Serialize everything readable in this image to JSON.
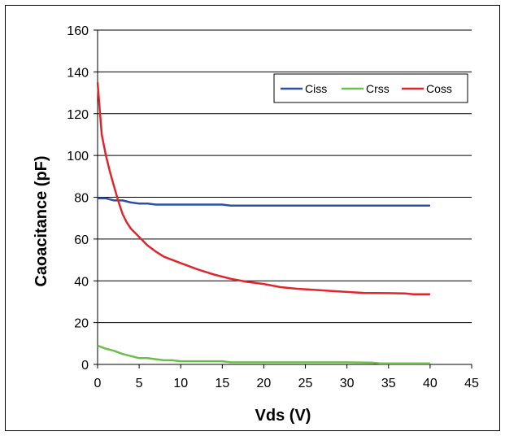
{
  "chart_data": {
    "type": "line",
    "title": "",
    "xlabel": "Vds (V)",
    "ylabel": "Caoacitance (pF)",
    "xlim": [
      0,
      45
    ],
    "ylim": [
      0,
      160
    ],
    "xticks": [
      0,
      5,
      10,
      15,
      20,
      25,
      30,
      35,
      40,
      45
    ],
    "yticks": [
      0,
      20,
      40,
      60,
      80,
      100,
      120,
      140,
      160
    ],
    "grid": "horizontal",
    "legend_position": "top-right",
    "series": [
      {
        "name": "Ciss",
        "color": "#2E4FA3",
        "points": [
          [
            0,
            79.5
          ],
          [
            1,
            79.5
          ],
          [
            2,
            78.5
          ],
          [
            3,
            78.5
          ],
          [
            4,
            77.5
          ],
          [
            5,
            77
          ],
          [
            6,
            77
          ],
          [
            7,
            76.5
          ],
          [
            10,
            76.5
          ],
          [
            15,
            76.5
          ],
          [
            16,
            76
          ],
          [
            20,
            76
          ],
          [
            25,
            76
          ],
          [
            30,
            76
          ],
          [
            35,
            76
          ],
          [
            40,
            76
          ]
        ]
      },
      {
        "name": "Crss",
        "color": "#6CC04A",
        "points": [
          [
            0,
            9
          ],
          [
            1,
            7.5
          ],
          [
            2,
            6.5
          ],
          [
            3,
            5
          ],
          [
            4,
            4
          ],
          [
            5,
            3
          ],
          [
            6,
            3
          ],
          [
            7,
            2.5
          ],
          [
            8,
            2
          ],
          [
            9,
            2
          ],
          [
            10,
            1.5
          ],
          [
            15,
            1.5
          ],
          [
            16,
            1
          ],
          [
            20,
            1
          ],
          [
            25,
            1
          ],
          [
            30,
            1
          ],
          [
            33,
            0.8
          ],
          [
            34,
            0.5
          ],
          [
            40,
            0.5
          ]
        ]
      },
      {
        "name": "Coss",
        "color": "#E0262B",
        "points": [
          [
            0,
            135
          ],
          [
            0.5,
            110
          ],
          [
            1,
            100
          ],
          [
            1.5,
            92
          ],
          [
            2,
            85
          ],
          [
            2.5,
            78
          ],
          [
            3,
            72
          ],
          [
            3.5,
            68
          ],
          [
            4,
            65
          ],
          [
            5,
            61
          ],
          [
            6,
            57
          ],
          [
            7,
            54
          ],
          [
            8,
            51.5
          ],
          [
            9,
            50
          ],
          [
            10,
            48.5
          ],
          [
            12,
            45.5
          ],
          [
            14,
            43
          ],
          [
            16,
            41
          ],
          [
            18,
            39.5
          ],
          [
            20,
            38.5
          ],
          [
            22,
            37
          ],
          [
            24,
            36.2
          ],
          [
            26,
            35.7
          ],
          [
            28,
            35.2
          ],
          [
            30,
            34.7
          ],
          [
            32,
            34.2
          ],
          [
            35,
            34.1
          ],
          [
            37,
            34
          ],
          [
            38,
            33.6
          ],
          [
            40,
            33.6
          ]
        ]
      }
    ]
  }
}
